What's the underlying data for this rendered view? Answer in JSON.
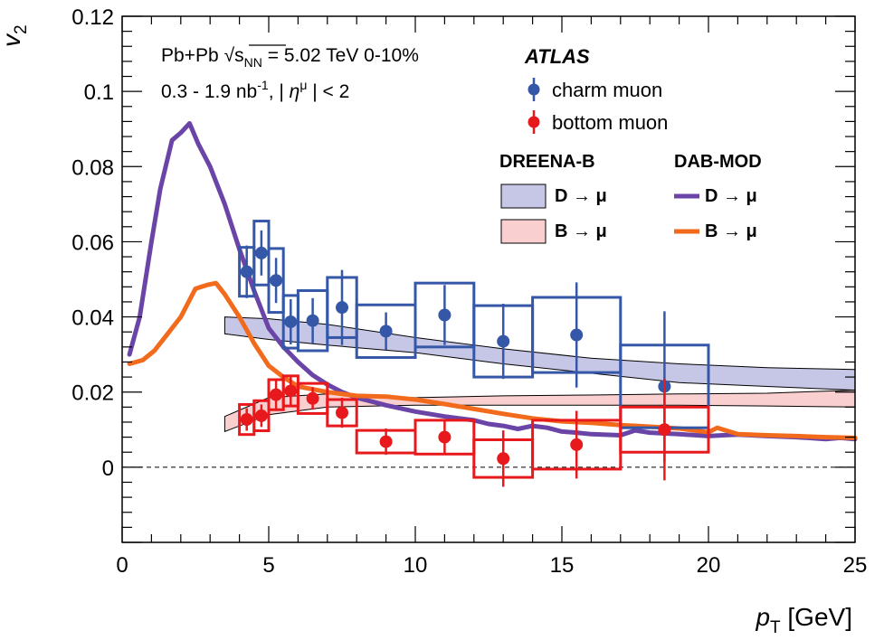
{
  "chart_data": {
    "type": "scatter",
    "xlabel_var": "p",
    "xlabel_sub": "T",
    "xlabel_unit": " [GeV]",
    "ylabel_var": "v",
    "ylabel_sub": "2",
    "xlim": [
      0,
      25
    ],
    "ylim": [
      -0.02,
      0.12
    ],
    "xticks": [
      0,
      5,
      10,
      15,
      20,
      25
    ],
    "xtick_labels": [
      "0",
      "5",
      "10",
      "15",
      "20",
      "25"
    ],
    "yticks": [
      0,
      0.02,
      0.04,
      0.06,
      0.08,
      0.1,
      0.12
    ],
    "ytick_labels": [
      "0",
      "0.02",
      "0.04",
      "0.06",
      "0.08",
      "0.1",
      "0.12"
    ],
    "reference_line_y": 0,
    "annotations": {
      "line1_a": "Pb+Pb",
      "line1_sqrt": "√",
      "line1_s": "s",
      "line1_sub": "NN",
      "line1_b": " = 5.02 TeV 0-10%",
      "line2_a": "0.3 - 1.9 nb",
      "line2_sup": "-1",
      "line2_b": ", | ",
      "line2_eta": "η",
      "line2_mu": "μ",
      "line2_c": " | < 2"
    },
    "legend": {
      "title": "ATLAS",
      "charm": "charm muon",
      "bottom": "bottom muon",
      "dreena": "DREENA-B",
      "dabmod": "DAB-MOD",
      "d_to_mu": "D → μ",
      "b_to_mu": "B → μ"
    },
    "colors": {
      "charm": "#3557a8",
      "charm_band": "#c6c6e6",
      "bottom": "#e8191c",
      "bottom_band": "#f9cfcf",
      "dab_d": "#6a44a6",
      "dab_b": "#f26a1b"
    },
    "series": [
      {
        "name": "charm muon",
        "points": [
          {
            "x": 4.25,
            "y": 0.052,
            "xlo": 4.0,
            "xhi": 4.5,
            "stat": 0.007,
            "sys": 0.0065
          },
          {
            "x": 4.75,
            "y": 0.057,
            "xlo": 4.5,
            "xhi": 5.0,
            "stat": 0.006,
            "sys": 0.0085
          },
          {
            "x": 5.25,
            "y": 0.0497,
            "xlo": 5.0,
            "xhi": 5.5,
            "stat": 0.006,
            "sys": 0.0085
          },
          {
            "x": 5.75,
            "y": 0.0387,
            "xlo": 5.5,
            "xhi": 6.0,
            "stat": 0.006,
            "sys": 0.007
          },
          {
            "x": 6.5,
            "y": 0.039,
            "xlo": 6.0,
            "xhi": 7.0,
            "stat": 0.006,
            "sys": 0.008
          },
          {
            "x": 7.5,
            "y": 0.0425,
            "xlo": 7.0,
            "xhi": 8.0,
            "stat": 0.01,
            "sys": 0.008
          },
          {
            "x": 9.0,
            "y": 0.0362,
            "xlo": 8.0,
            "xhi": 10.0,
            "stat": 0.005,
            "sys": 0.007
          },
          {
            "x": 11.0,
            "y": 0.0405,
            "xlo": 10.0,
            "xhi": 12.0,
            "stat": 0.008,
            "sys": 0.0085
          },
          {
            "x": 13.0,
            "y": 0.0335,
            "xlo": 12.0,
            "xhi": 14.0,
            "stat": 0.01,
            "sys": 0.0095
          },
          {
            "x": 15.5,
            "y": 0.0352,
            "xlo": 14.0,
            "xhi": 17.0,
            "stat": 0.014,
            "sys": 0.01
          },
          {
            "x": 18.5,
            "y": 0.0215,
            "xlo": 17.0,
            "xhi": 20.0,
            "stat": 0.02,
            "sys": 0.011
          }
        ]
      },
      {
        "name": "bottom muon",
        "points": [
          {
            "x": 4.25,
            "y": 0.0127,
            "xlo": 4.0,
            "xhi": 4.5,
            "stat": 0.003,
            "sys": 0.004
          },
          {
            "x": 4.75,
            "y": 0.0137,
            "xlo": 4.5,
            "xhi": 5.0,
            "stat": 0.003,
            "sys": 0.004
          },
          {
            "x": 5.25,
            "y": 0.0193,
            "xlo": 5.0,
            "xhi": 5.5,
            "stat": 0.004,
            "sys": 0.004
          },
          {
            "x": 5.75,
            "y": 0.0203,
            "xlo": 5.5,
            "xhi": 6.0,
            "stat": 0.004,
            "sys": 0.004
          },
          {
            "x": 6.5,
            "y": 0.0183,
            "xlo": 6.0,
            "xhi": 7.0,
            "stat": 0.003,
            "sys": 0.004
          },
          {
            "x": 7.5,
            "y": 0.0145,
            "xlo": 7.0,
            "xhi": 8.0,
            "stat": 0.004,
            "sys": 0.0035
          },
          {
            "x": 9.0,
            "y": 0.0068,
            "xlo": 8.0,
            "xhi": 10.0,
            "stat": 0.0035,
            "sys": 0.003
          },
          {
            "x": 11.0,
            "y": 0.008,
            "xlo": 10.0,
            "xhi": 12.0,
            "stat": 0.0045,
            "sys": 0.0045
          },
          {
            "x": 13.0,
            "y": 0.0023,
            "xlo": 12.0,
            "xhi": 14.0,
            "stat": 0.0075,
            "sys": 0.005
          },
          {
            "x": 15.5,
            "y": 0.006,
            "xlo": 14.0,
            "xhi": 17.0,
            "stat": 0.009,
            "sys": 0.0065
          },
          {
            "x": 18.5,
            "y": 0.01,
            "xlo": 17.0,
            "xhi": 20.0,
            "stat": 0.0135,
            "sys": 0.006
          }
        ]
      }
    ],
    "bands": [
      {
        "name": "DREENA-B D → μ",
        "x": [
          3.5,
          5,
          7,
          10,
          13,
          16,
          19,
          22,
          25
        ],
        "lower": [
          0.0355,
          0.034,
          0.0325,
          0.0305,
          0.0275,
          0.025,
          0.0225,
          0.0215,
          0.0205
        ],
        "upper": [
          0.04,
          0.0395,
          0.038,
          0.0345,
          0.0315,
          0.029,
          0.0275,
          0.0265,
          0.026
        ]
      },
      {
        "name": "DREENA-B B → μ",
        "x": [
          3.5,
          5,
          7,
          10,
          13,
          16,
          19,
          22,
          25
        ],
        "lower": [
          0.0095,
          0.014,
          0.016,
          0.0165,
          0.0165,
          0.0165,
          0.0165,
          0.0163,
          0.016
        ],
        "upper": [
          0.0135,
          0.0185,
          0.0195,
          0.0185,
          0.019,
          0.0192,
          0.0195,
          0.0197,
          0.0205
        ]
      }
    ],
    "curves": [
      {
        "name": "DAB-MOD D → μ",
        "x": [
          0.25,
          0.6,
          1.0,
          1.3,
          1.7,
          2.0,
          2.3,
          2.6,
          3.0,
          3.5,
          4.0,
          4.5,
          5.0,
          5.5,
          6.0,
          6.5,
          7.0,
          7.5,
          8.0,
          8.5,
          9.0,
          10.0,
          11.0,
          12.0,
          12.5,
          13.0,
          13.5,
          14.0,
          14.5,
          15.0,
          15.5,
          16.0,
          17.0,
          17.5,
          18.0,
          19.0,
          20.0,
          20.5,
          21.0,
          22.0,
          23.0,
          24.0,
          24.5,
          25.0
        ],
        "y": [
          0.03,
          0.04,
          0.06,
          0.074,
          0.087,
          0.089,
          0.0915,
          0.086,
          0.08,
          0.07,
          0.058,
          0.047,
          0.037,
          0.032,
          0.028,
          0.0245,
          0.022,
          0.02,
          0.0185,
          0.0175,
          0.0165,
          0.0148,
          0.0135,
          0.0125,
          0.0115,
          0.011,
          0.0102,
          0.011,
          0.0105,
          0.0095,
          0.0092,
          0.0088,
          0.0085,
          0.0098,
          0.0092,
          0.0088,
          0.0083,
          0.0085,
          0.0087,
          0.0083,
          0.008,
          0.0075,
          0.0078,
          0.0075
        ]
      },
      {
        "name": "DAB-MOD B → μ",
        "x": [
          0.25,
          0.7,
          1.1,
          1.5,
          2.0,
          2.5,
          2.9,
          3.2,
          3.5,
          4.0,
          4.5,
          5.0,
          5.5,
          6.0,
          7.0,
          8.0,
          9.0,
          10.0,
          11.0,
          12.0,
          13.0,
          14.0,
          15.0,
          16.0,
          17.0,
          18.0,
          19.0,
          20.0,
          20.3,
          21.0,
          22.0,
          23.0,
          24.0,
          25.0
        ],
        "y": [
          0.0275,
          0.0285,
          0.031,
          0.035,
          0.04,
          0.0475,
          0.0485,
          0.049,
          0.046,
          0.04,
          0.033,
          0.027,
          0.024,
          0.0215,
          0.02,
          0.019,
          0.0188,
          0.018,
          0.0168,
          0.0155,
          0.0142,
          0.013,
          0.0122,
          0.0118,
          0.0112,
          0.0108,
          0.0103,
          0.0093,
          0.0105,
          0.0088,
          0.0085,
          0.0083,
          0.008,
          0.0078
        ]
      }
    ]
  }
}
